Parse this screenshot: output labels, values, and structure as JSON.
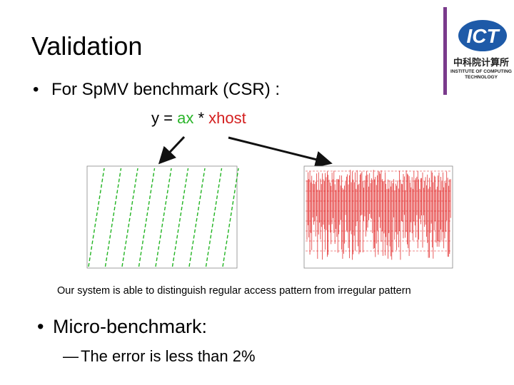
{
  "slide": {
    "title": "Validation",
    "bullets": [
      "For SpMV benchmark (CSR) :",
      "Micro-benchmark:"
    ],
    "sub_bullets": [
      "The error is less than 2%"
    ],
    "equation": {
      "left": "y = ",
      "ax": "ax",
      "op": " * ",
      "xhost": "xhost"
    },
    "caption": "Our system is able to distinguish regular access pattern from irregular pattern",
    "logo": {
      "mark": "ICT",
      "chinese": "中科院计算所",
      "line1": "INSTITUTE OF COMPUTING",
      "line2": "TECHNOLOGY"
    }
  }
}
